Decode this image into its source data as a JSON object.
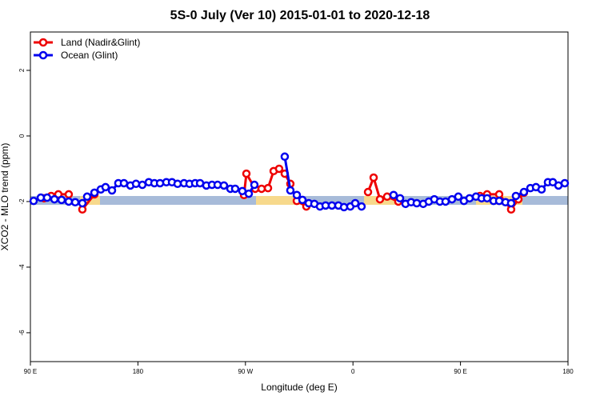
{
  "chart_data": {
    "type": "line",
    "title": "5S-0 July (Ver 10)   2015-01-01 to 2020-12-18",
    "x_label": "Longitude (deg E)",
    "y_label": "XCO2 - MLO trend (ppm)",
    "xlim": [
      90,
      540
    ],
    "ylim": [
      -6.88,
      3.17
    ],
    "xticks": [
      {
        "value": 90,
        "label": "90 E"
      },
      180,
      {
        "value": 270,
        "label": "90 W"
      },
      {
        "value": 360,
        "label": "0"
      },
      {
        "value": 450,
        "label": "90 E"
      },
      {
        "value": 540,
        "label": "180"
      }
    ],
    "yticks": [
      2,
      0,
      -2,
      -4,
      -6
    ],
    "legend": "top-left",
    "grid": false,
    "series": [
      {
        "name": "Land (Nadir&Glint)",
        "color": "#ee0000",
        "x": [
          101.4,
          107.4,
          113.4,
          122.1,
          null,
          133.5,
          143.6,
          null,
          268.8,
          270.8,
          278.2,
          283.5,
          288.9,
          293.6,
          298.2,
          302.9,
          307.6,
          313,
          321,
          null,
          372.6,
          377.3,
          382.6,
          388.6,
          398,
          null,
          466.3,
          472.3,
          482.4,
          492.4,
          498.5,
          503.1
        ],
        "values": [
          -1.9,
          -1.83,
          -1.78,
          -1.78,
          null,
          -2.24,
          -1.78,
          null,
          -1.8,
          -1.15,
          -1.61,
          -1.61,
          -1.59,
          -1.07,
          -1.0,
          -1.15,
          -1.46,
          -1.98,
          -2.15,
          null,
          -1.71,
          -1.27,
          -1.93,
          -1.85,
          -2.0,
          null,
          -1.83,
          -1.78,
          -1.78,
          -2.24,
          -1.93,
          -1.73
        ]
      },
      {
        "name": "Ocean (Glint)",
        "color": "#0000ee",
        "x": [
          92.7,
          98.7,
          104,
          110.1,
          116.1,
          122.1,
          127.5,
          133.5,
          137.5,
          143.6,
          148.9,
          152.9,
          158.3,
          163.6,
          168.3,
          173.7,
          178.4,
          183.7,
          189.1,
          193.8,
          198.5,
          203.8,
          208.5,
          213.2,
          218.6,
          223.2,
          227.9,
          232,
          237.3,
          242,
          246.7,
          252,
          257.4,
          261.4,
          267.4,
          272.8,
          277.5,
          null,
          302.9,
          307.6,
          313,
          317.7,
          323,
          327.7,
          332.4,
          337.1,
          342.4,
          347.8,
          352.5,
          357.8,
          361.9,
          367.2,
          null,
          394,
          399.4,
          404,
          408.7,
          413.4,
          418.8,
          423.5,
          428.1,
          432.8,
          437.5,
          442.9,
          448.2,
          452.9,
          457.6,
          463,
          467.7,
          472.3,
          477.7,
          482.4,
          487.7,
          492.4,
          496.4,
          503.1,
          508.5,
          513.2,
          517.9,
          523.2,
          527.3,
          532,
          537.3
        ],
        "values": [
          -1.98,
          -1.88,
          -1.88,
          -1.93,
          -1.95,
          -2.0,
          -2.02,
          -2.05,
          -1.85,
          -1.73,
          -1.63,
          -1.56,
          -1.66,
          -1.44,
          -1.44,
          -1.51,
          -1.46,
          -1.49,
          -1.41,
          -1.44,
          -1.44,
          -1.41,
          -1.41,
          -1.46,
          -1.44,
          -1.46,
          -1.44,
          -1.44,
          -1.51,
          -1.49,
          -1.49,
          -1.51,
          -1.61,
          -1.61,
          -1.68,
          -1.76,
          -1.49,
          null,
          -0.63,
          -1.66,
          -1.8,
          -1.95,
          -2.05,
          -2.07,
          -2.15,
          -2.12,
          -2.12,
          -2.12,
          -2.17,
          -2.15,
          -2.05,
          -2.15,
          null,
          -1.8,
          -1.9,
          -2.07,
          -2.02,
          -2.05,
          -2.07,
          -2.0,
          -1.93,
          -2.0,
          -2.0,
          -1.93,
          -1.85,
          -1.98,
          -1.9,
          -1.85,
          -1.9,
          -1.9,
          -1.98,
          -1.98,
          -2.02,
          -2.05,
          -1.83,
          -1.71,
          -1.59,
          -1.56,
          -1.63,
          -1.41,
          -1.41,
          -1.51,
          -1.44
        ]
      }
    ]
  }
}
